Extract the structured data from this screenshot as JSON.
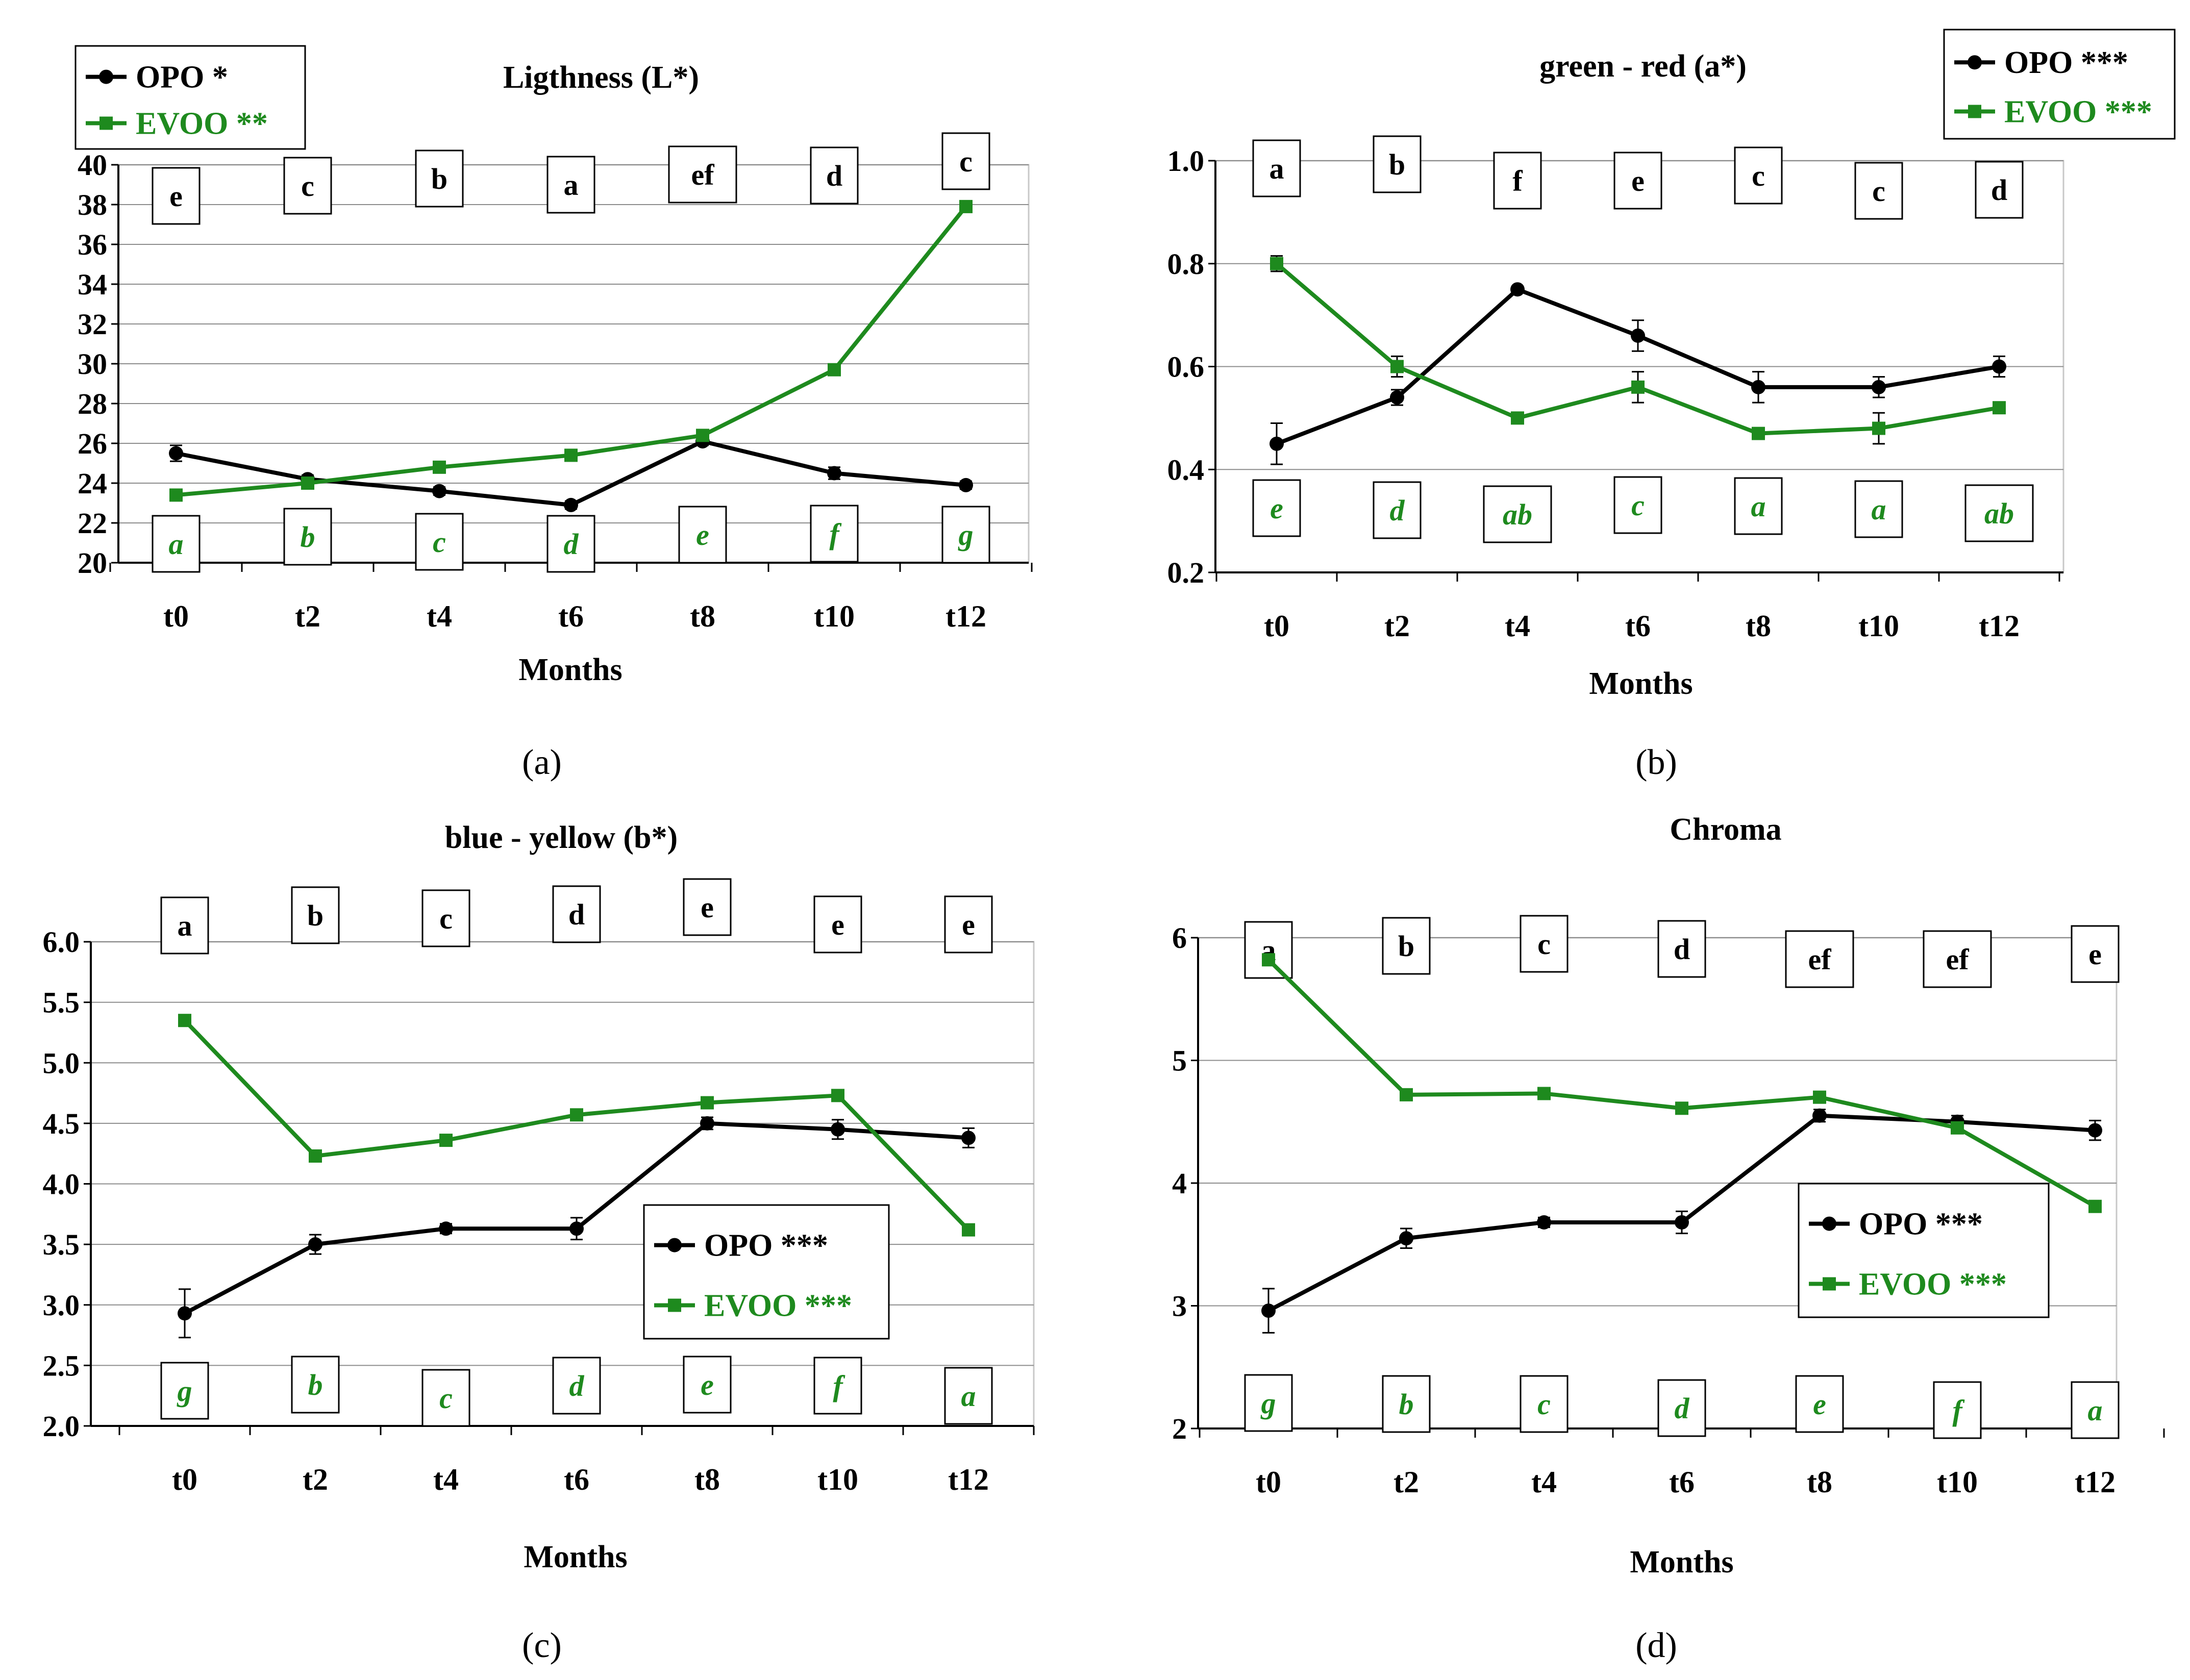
{
  "colors": {
    "opo": "#000000",
    "evoo": "#1e8a1e",
    "grid": "#8c8c8c",
    "frame": "#c8c8c8"
  },
  "chart_data": [
    {
      "type": "line",
      "panel_label": "(a)",
      "title": "Ligthness (L*)",
      "xlabel": "Months",
      "ylabel": "",
      "categories": [
        "t0",
        "t2",
        "t4",
        "t6",
        "t8",
        "t10",
        "t12"
      ],
      "ylim": [
        20,
        40
      ],
      "yticks": [
        "20",
        "22",
        "24",
        "26",
        "28",
        "30",
        "32",
        "34",
        "36",
        "38",
        "40"
      ],
      "grid": true,
      "legend_position": "top-left",
      "series": [
        {
          "name": "OPO",
          "legend_label": "OPO *",
          "values": [
            25.5,
            24.2,
            23.6,
            22.9,
            26.1,
            24.5,
            23.9
          ],
          "errors": [
            0.4,
            0.2,
            0.2,
            0.2,
            0.2,
            0.3,
            0.2
          ]
        },
        {
          "name": "EVOO",
          "legend_label": "EVOO **",
          "values": [
            23.4,
            24.0,
            24.8,
            25.4,
            26.4,
            29.7,
            37.9
          ],
          "errors": [
            0.2,
            0.2,
            0.2,
            0.2,
            0.2,
            0.2,
            0.2
          ]
        }
      ],
      "opo_letters": [
        "e",
        "c",
        "b",
        "a",
        "ef",
        "d",
        "c"
      ],
      "evoo_letters": [
        "a",
        "b",
        "c",
        "d",
        "e",
        "f",
        "g"
      ]
    },
    {
      "type": "line",
      "panel_label": "(b)",
      "title": "green - red (a*)",
      "xlabel": "Months",
      "ylabel": "",
      "categories": [
        "t0",
        "t2",
        "t4",
        "t6",
        "t8",
        "t10",
        "t12"
      ],
      "ylim": [
        0.2,
        1.0
      ],
      "yticks": [
        "0.2",
        "0.4",
        "0.6",
        "0.8",
        "1.0"
      ],
      "grid": true,
      "legend_position": "top-right",
      "series": [
        {
          "name": "OPO",
          "legend_label": "OPO ***",
          "values": [
            0.45,
            0.54,
            0.75,
            0.66,
            0.56,
            0.56,
            0.6
          ],
          "errors": [
            0.04,
            0.015,
            0.005,
            0.03,
            0.03,
            0.02,
            0.02
          ]
        },
        {
          "name": "EVOO",
          "legend_label": "EVOO ***",
          "values": [
            0.8,
            0.6,
            0.5,
            0.56,
            0.47,
            0.48,
            0.52
          ],
          "errors": [
            0.015,
            0.02,
            0.005,
            0.03,
            0.005,
            0.03,
            0.005
          ]
        }
      ],
      "opo_letters": [
        "a",
        "b",
        "f",
        "e",
        "c",
        "c",
        "d"
      ],
      "evoo_letters": [
        "e",
        "d",
        "ab",
        "c",
        "a",
        "a",
        "ab"
      ]
    },
    {
      "type": "line",
      "panel_label": "(c)",
      "title": "blue - yellow (b*)",
      "xlabel": "Months",
      "ylabel": "",
      "categories": [
        "t0",
        "t2",
        "t4",
        "t6",
        "t8",
        "t10",
        "t12"
      ],
      "ylim": [
        2.0,
        6.0
      ],
      "yticks": [
        "2.0",
        "2.5",
        "3.0",
        "3.5",
        "4.0",
        "4.5",
        "5.0",
        "5.5",
        "6.0"
      ],
      "grid": true,
      "legend_position": "center-right",
      "series": [
        {
          "name": "OPO",
          "legend_label": "OPO ***",
          "values": [
            2.93,
            3.5,
            3.63,
            3.63,
            4.5,
            4.45,
            4.38
          ],
          "errors": [
            0.2,
            0.08,
            0.04,
            0.09,
            0.05,
            0.08,
            0.08
          ]
        },
        {
          "name": "EVOO",
          "legend_label": "EVOO ***",
          "values": [
            5.35,
            4.23,
            4.36,
            4.57,
            4.67,
            4.73,
            3.62
          ],
          "errors": [
            0.03,
            0.02,
            0.02,
            0.02,
            0.02,
            0.02,
            0.02
          ]
        }
      ],
      "opo_letters": [
        "a",
        "b",
        "c",
        "d",
        "e",
        "e",
        "e"
      ],
      "evoo_letters": [
        "g",
        "b",
        "c",
        "d",
        "e",
        "f",
        "a"
      ]
    },
    {
      "type": "line",
      "panel_label": "(d)",
      "title": "Chroma",
      "xlabel": "Months",
      "ylabel": "",
      "categories": [
        "t0",
        "t2",
        "t4",
        "t6",
        "t8",
        "t10",
        "t12"
      ],
      "ylim": [
        2,
        6
      ],
      "yticks": [
        "2",
        "3",
        "4",
        "5",
        "6"
      ],
      "grid": true,
      "legend_position": "center-right",
      "series": [
        {
          "name": "OPO",
          "legend_label": "OPO ***",
          "values": [
            2.96,
            3.55,
            3.68,
            3.68,
            4.55,
            4.5,
            4.43
          ],
          "errors": [
            0.18,
            0.08,
            0.04,
            0.09,
            0.05,
            0.05,
            0.08
          ]
        },
        {
          "name": "EVOO",
          "legend_label": "EVOO ***",
          "values": [
            5.82,
            4.72,
            4.73,
            4.61,
            4.7,
            4.45,
            3.81
          ],
          "errors": [
            0.02,
            0.02,
            0.02,
            0.02,
            0.02,
            0.02,
            0.02
          ]
        }
      ],
      "opo_letters": [
        "a",
        "b",
        "c",
        "d",
        "ef",
        "ef",
        "e"
      ],
      "evoo_letters": [
        "g",
        "b",
        "c",
        "d",
        "e",
        "f",
        "a"
      ]
    }
  ]
}
